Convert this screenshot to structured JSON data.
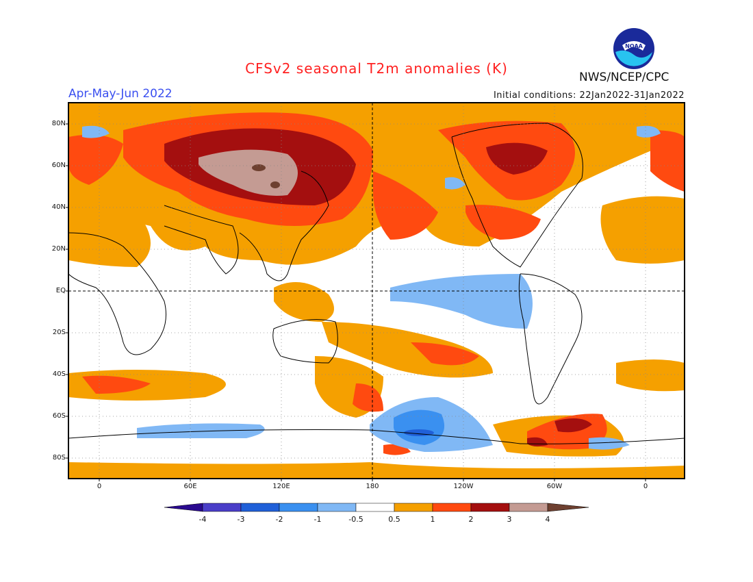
{
  "title": "CFSv2 seasonal T2m anomalies (K)",
  "period": "Apr-May-Jun 2022",
  "organization": "NWS/NCEP/CPC",
  "initial_conditions": "Initial conditions: 22Jan2022-31Jan2022",
  "logo": {
    "text": "NOAA",
    "icon": "noaa-logo-icon"
  },
  "map": {
    "projection": "cylindrical-equidistant",
    "center_longitude": 180,
    "lat_labels": [
      "80N",
      "60N",
      "40N",
      "20N",
      "EQ",
      "20S",
      "40S",
      "60S",
      "80S"
    ],
    "lon_labels": [
      "0",
      "60E",
      "120E",
      "180",
      "120W",
      "60W",
      "0"
    ],
    "gridlines": "dotted",
    "reference_lines": [
      "equator",
      "dateline"
    ]
  },
  "colorbar": {
    "labels": [
      "-4",
      "-3",
      "-2",
      "-1",
      "-0.5",
      "0.5",
      "1",
      "2",
      "3",
      "4"
    ],
    "colors": [
      "#2a0a8f",
      "#4a3ec8",
      "#2060d8",
      "#3a90f0",
      "#80b8f5",
      "#ffffff",
      "#f5a000",
      "#ff4a10",
      "#a40f0f",
      "#c49b93",
      "#6e4030"
    ]
  }
}
